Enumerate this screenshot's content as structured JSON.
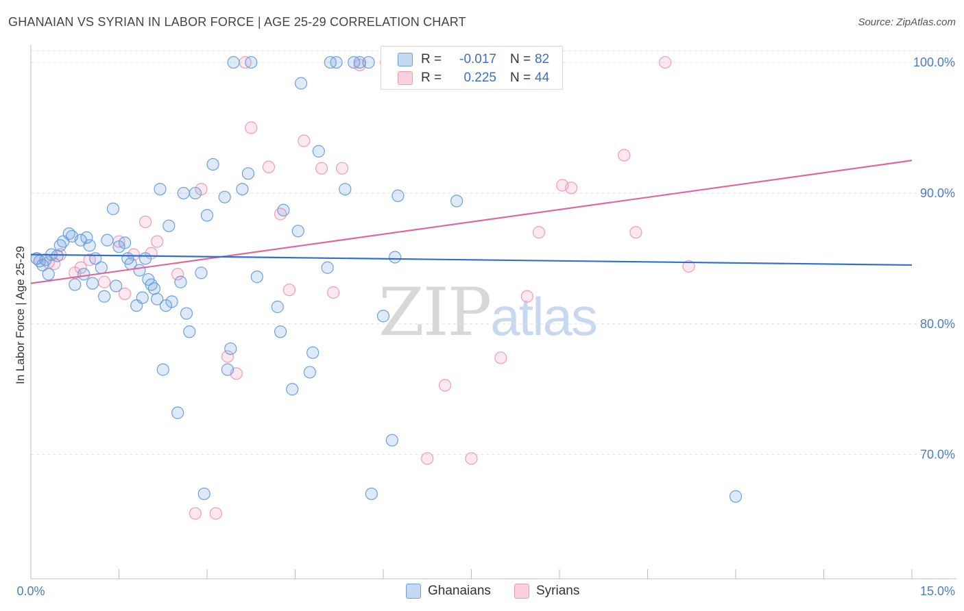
{
  "title": "GHANAIAN VS SYRIAN IN LABOR FORCE | AGE 25-29 CORRELATION CHART",
  "source": "Source: ZipAtlas.com",
  "watermark": {
    "zip": "ZIP",
    "atlas": "atlas"
  },
  "colors": {
    "ghanaians": "#6a9fe0",
    "syrians": "#f19ab5",
    "ghanaians_line": "#2e6fd0",
    "syrians_line": "#e0679a",
    "tick": "#4a7cc4"
  },
  "legend_top": {
    "rows": [
      {
        "r_label": "R =",
        "r_value": "-0.017",
        "n_label": "N =",
        "n_value": "82"
      },
      {
        "r_label": "R =",
        "r_value": "0.225",
        "n_label": "N =",
        "n_value": "44"
      }
    ]
  },
  "legend_bottom": {
    "ghanaians": "Ghanaians",
    "syrians": "Syrians"
  },
  "chart_data": {
    "type": "scatter",
    "title": "GHANAIAN VS SYRIAN IN LABOR FORCE | AGE 25-29 CORRELATION CHART",
    "xlabel": "",
    "ylabel": "In Labor Force | Age 25-29",
    "xlim": [
      0,
      15
    ],
    "ylim": [
      60.5,
      101
    ],
    "x_tick_labels": [
      "0.0%",
      "15.0%"
    ],
    "y_ticks": [
      70,
      80,
      90,
      100
    ],
    "y_tick_labels": [
      "70.0%",
      "80.0%",
      "90.0%",
      "100.0%"
    ],
    "grid": true,
    "legend_placement": "top-center",
    "series": [
      {
        "name": "Ghanaians",
        "R": -0.017,
        "N": 82,
        "trend": {
          "x": [
            0,
            15
          ],
          "y": [
            85.3,
            84.5
          ]
        },
        "points": [
          [
            0.1,
            85.0
          ],
          [
            0.15,
            84.8
          ],
          [
            0.2,
            84.5
          ],
          [
            0.3,
            83.8
          ],
          [
            0.35,
            85.3
          ],
          [
            0.45,
            85.2
          ],
          [
            0.5,
            86.0
          ],
          [
            0.55,
            86.3
          ],
          [
            0.65,
            86.9
          ],
          [
            0.7,
            86.7
          ],
          [
            0.75,
            83.0
          ],
          [
            0.85,
            86.4
          ],
          [
            0.9,
            83.8
          ],
          [
            0.95,
            86.6
          ],
          [
            1.0,
            86.0
          ],
          [
            1.05,
            83.1
          ],
          [
            1.1,
            85.0
          ],
          [
            1.2,
            84.3
          ],
          [
            1.25,
            82.1
          ],
          [
            1.3,
            86.4
          ],
          [
            1.4,
            88.8
          ],
          [
            1.45,
            82.9
          ],
          [
            1.5,
            85.9
          ],
          [
            1.6,
            86.2
          ],
          [
            1.65,
            85.0
          ],
          [
            1.7,
            84.6
          ],
          [
            1.8,
            81.4
          ],
          [
            1.85,
            84.1
          ],
          [
            1.9,
            82.0
          ],
          [
            1.95,
            85.0
          ],
          [
            2.0,
            83.4
          ],
          [
            2.05,
            83.0
          ],
          [
            2.1,
            82.7
          ],
          [
            2.15,
            81.9
          ],
          [
            2.2,
            90.3
          ],
          [
            2.25,
            76.5
          ],
          [
            2.3,
            81.4
          ],
          [
            2.35,
            87.5
          ],
          [
            2.4,
            81.7
          ],
          [
            2.5,
            73.2
          ],
          [
            2.55,
            83.2
          ],
          [
            2.6,
            90.0
          ],
          [
            2.65,
            80.8
          ],
          [
            2.7,
            79.4
          ],
          [
            2.8,
            90.0
          ],
          [
            2.9,
            83.9
          ],
          [
            2.95,
            67.0
          ],
          [
            3.0,
            88.3
          ],
          [
            3.1,
            92.2
          ],
          [
            3.3,
            89.7
          ],
          [
            3.35,
            76.5
          ],
          [
            3.4,
            78.1
          ],
          [
            3.45,
            100
          ],
          [
            3.6,
            90.3
          ],
          [
            3.7,
            91.5
          ],
          [
            3.75,
            100
          ],
          [
            3.85,
            83.6
          ],
          [
            4.2,
            81.3
          ],
          [
            4.25,
            79.4
          ],
          [
            4.3,
            88.7
          ],
          [
            4.45,
            75.0
          ],
          [
            4.55,
            87.1
          ],
          [
            4.6,
            98.4
          ],
          [
            4.75,
            76.3
          ],
          [
            4.8,
            77.8
          ],
          [
            4.9,
            93.2
          ],
          [
            5.05,
            84.3
          ],
          [
            5.1,
            100
          ],
          [
            5.2,
            100
          ],
          [
            5.35,
            90.3
          ],
          [
            5.5,
            100
          ],
          [
            5.6,
            100
          ],
          [
            5.75,
            100
          ],
          [
            5.8,
            67.0
          ],
          [
            6.0,
            80.6
          ],
          [
            6.15,
            71.1
          ],
          [
            6.2,
            85.1
          ],
          [
            6.25,
            89.8
          ],
          [
            7.25,
            89.4
          ],
          [
            7.5,
            100
          ],
          [
            12.0,
            66.8
          ],
          [
            0.25,
            84.9
          ]
        ]
      },
      {
        "name": "Syrians",
        "R": 0.225,
        "N": 44,
        "trend": {
          "x": [
            0,
            15
          ],
          "y": [
            83.1,
            92.5
          ]
        },
        "points": [
          [
            0.1,
            85.0
          ],
          [
            0.3,
            84.7
          ],
          [
            0.4,
            84.6
          ],
          [
            0.5,
            85.3
          ],
          [
            0.75,
            83.9
          ],
          [
            0.85,
            84.3
          ],
          [
            1.0,
            84.9
          ],
          [
            1.25,
            83.2
          ],
          [
            1.5,
            86.3
          ],
          [
            1.6,
            82.3
          ],
          [
            1.75,
            85.3
          ],
          [
            1.95,
            87.8
          ],
          [
            2.05,
            85.4
          ],
          [
            2.15,
            86.3
          ],
          [
            2.5,
            83.8
          ],
          [
            2.8,
            65.5
          ],
          [
            2.9,
            90.3
          ],
          [
            3.15,
            65.5
          ],
          [
            3.35,
            77.5
          ],
          [
            3.5,
            76.2
          ],
          [
            3.65,
            100
          ],
          [
            3.75,
            95.0
          ],
          [
            4.05,
            92.0
          ],
          [
            4.25,
            88.4
          ],
          [
            4.4,
            82.6
          ],
          [
            4.65,
            94.0
          ],
          [
            4.95,
            91.9
          ],
          [
            5.15,
            82.4
          ],
          [
            5.3,
            91.9
          ],
          [
            5.6,
            99.8
          ],
          [
            6.05,
            100
          ],
          [
            6.75,
            69.7
          ],
          [
            7.05,
            75.3
          ],
          [
            7.5,
            69.7
          ],
          [
            8.0,
            77.4
          ],
          [
            8.45,
            82.1
          ],
          [
            8.65,
            87.0
          ],
          [
            8.85,
            100
          ],
          [
            9.05,
            90.6
          ],
          [
            9.2,
            90.4
          ],
          [
            10.1,
            92.9
          ],
          [
            10.3,
            87.0
          ],
          [
            10.8,
            100
          ],
          [
            11.2,
            84.4
          ]
        ]
      }
    ]
  }
}
